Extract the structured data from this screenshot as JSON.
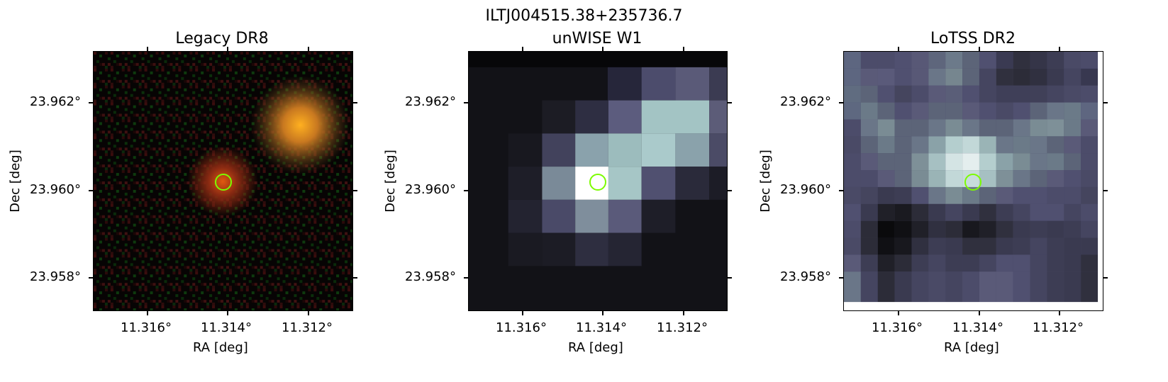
{
  "figure_title": "ILTJ004515.38+235736.7",
  "panels": [
    {
      "title": "Legacy DR8",
      "xlabel": "RA [deg]",
      "ylabel": "Dec [deg]",
      "xticks": [
        "11.316°",
        "11.314°",
        "11.312°"
      ],
      "yticks": [
        "23.962°",
        "23.960°",
        "23.958°"
      ]
    },
    {
      "title": "unWISE W1",
      "xlabel": "RA [deg]",
      "ylabel": "Dec [deg]",
      "xticks": [
        "11.316°",
        "11.314°",
        "11.312°"
      ],
      "yticks": [
        "23.962°",
        "23.960°",
        "23.958°"
      ]
    },
    {
      "title": "LoTSS DR2",
      "xlabel": "RA [deg]",
      "ylabel": "Dec [deg]",
      "xticks": [
        "11.316°",
        "11.314°",
        "11.312°"
      ],
      "yticks": [
        "23.962°",
        "23.960°",
        "23.958°"
      ]
    }
  ],
  "colors": {
    "marker": "#7cfc00",
    "axes": "#000000"
  }
}
